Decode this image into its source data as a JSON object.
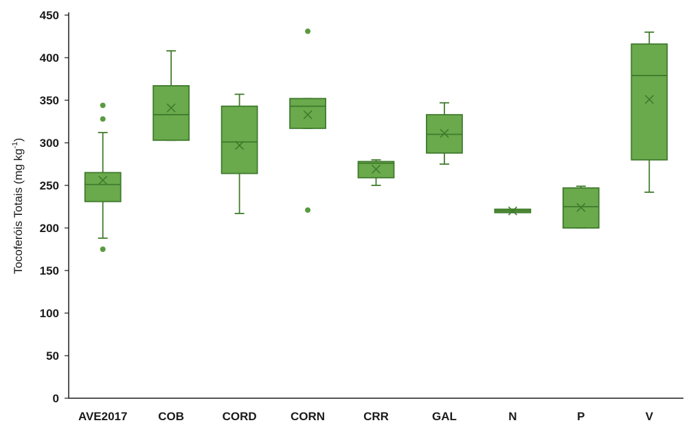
{
  "chart_data": {
    "type": "boxplot",
    "ylabel_main": "Tocoferóis Totais (mg kg",
    "ylabel_sup": "-1",
    "ylabel_end": ")",
    "ylim": [
      0,
      450
    ],
    "yticks": [
      0,
      50,
      100,
      150,
      200,
      250,
      300,
      350,
      400,
      450
    ],
    "grid": false,
    "colors": {
      "box_fill": "#6aaa4c",
      "box_stroke": "#3f7a2c",
      "outlier": "#5a9a40",
      "axis": "#1a1a1a"
    },
    "categories": [
      "AVE2017",
      "COB",
      "CORD",
      "CORN",
      "CRR",
      "GAL",
      "N",
      "P",
      "V"
    ],
    "boxes": [
      {
        "category": "AVE2017",
        "whisker_low": 188,
        "q1": 231,
        "median": 251,
        "q3": 265,
        "whisker_high": 312,
        "mean": 256,
        "outliers": [
          344,
          328,
          175
        ]
      },
      {
        "category": "COB",
        "whisker_low": 303,
        "q1": 303,
        "median": 333,
        "q3": 367,
        "whisker_high": 408,
        "mean": 341,
        "outliers": []
      },
      {
        "category": "CORD",
        "whisker_low": 217,
        "q1": 264,
        "median": 301,
        "q3": 343,
        "whisker_high": 357,
        "mean": 297,
        "outliers": []
      },
      {
        "category": "CORN",
        "whisker_low": 317,
        "q1": 317,
        "median": 343,
        "q3": 352,
        "whisker_high": 352,
        "mean": 333,
        "outliers": [
          431,
          221
        ]
      },
      {
        "category": "CRR",
        "whisker_low": 250,
        "q1": 259,
        "median": 276,
        "q3": 278,
        "whisker_high": 280,
        "mean": 269,
        "outliers": []
      },
      {
        "category": "GAL",
        "whisker_low": 275,
        "q1": 288,
        "median": 310,
        "q3": 333,
        "whisker_high": 347,
        "mean": 311,
        "outliers": []
      },
      {
        "category": "N",
        "whisker_low": 218,
        "q1": 218,
        "median": 220,
        "q3": 222,
        "whisker_high": 222,
        "mean": 220,
        "outliers": []
      },
      {
        "category": "P",
        "whisker_low": 200,
        "q1": 200,
        "median": 225,
        "q3": 247,
        "whisker_high": 249,
        "mean": 224,
        "outliers": []
      },
      {
        "category": "V",
        "whisker_low": 242,
        "q1": 280,
        "median": 379,
        "q3": 416,
        "whisker_high": 430,
        "mean": 351,
        "outliers": []
      }
    ]
  }
}
